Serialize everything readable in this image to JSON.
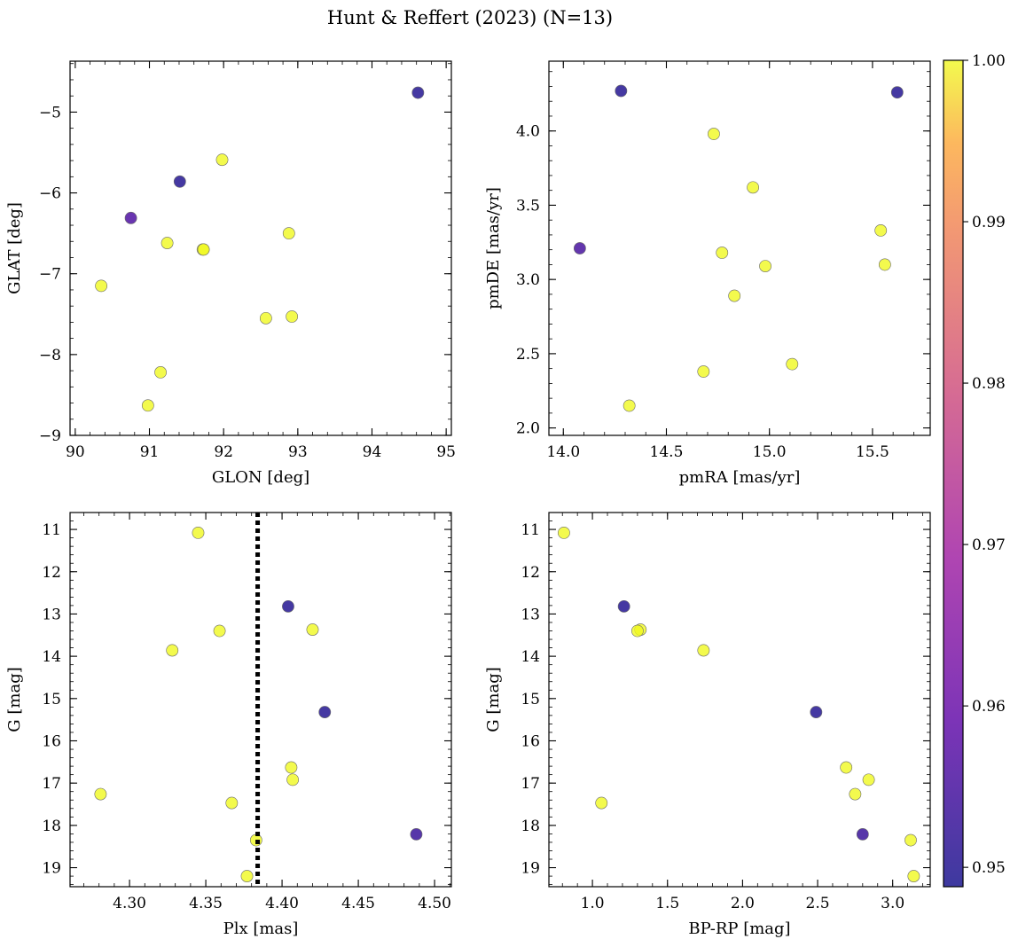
{
  "title": "Hunt & Reffert (2023) (N=13)",
  "colorbar": {
    "min": 0.9488,
    "max": 1.0,
    "ticks": [
      0.95,
      0.96,
      0.97,
      0.98,
      0.99,
      1.0
    ],
    "tick_labels": [
      "0.95",
      "0.96",
      "0.97",
      "0.98",
      "0.99",
      "1.00"
    ],
    "colormap": "plasma"
  },
  "chart_data": [
    {
      "type": "scatter",
      "xlabel": "GLON [deg]",
      "ylabel": "GLAT [deg]",
      "xlim": [
        89.93,
        95.07
      ],
      "ylim": [
        -9.0,
        -4.37
      ],
      "xticks": [
        90,
        91,
        92,
        93,
        94,
        95
      ],
      "xtick_labels": [
        "90",
        "91",
        "92",
        "93",
        "94",
        "95"
      ],
      "yticks": [
        -9,
        -8,
        -7,
        -6,
        -5
      ],
      "ytick_labels": [
        "−9",
        "−8",
        "−7",
        "−6",
        "−5"
      ],
      "x_minor": 0.2,
      "y_minor": 0.2,
      "points": [
        {
          "x": 94.62,
          "y": -4.76,
          "c": 0.95
        },
        {
          "x": 91.41,
          "y": -5.86,
          "c": 0.95
        },
        {
          "x": 90.75,
          "y": -6.31,
          "c": 0.956
        },
        {
          "x": 91.98,
          "y": -5.59,
          "c": 1.0
        },
        {
          "x": 91.24,
          "y": -6.62,
          "c": 1.0
        },
        {
          "x": 91.72,
          "y": -6.7,
          "c": 1.0
        },
        {
          "x": 91.73,
          "y": -6.7,
          "c": 1.0
        },
        {
          "x": 92.88,
          "y": -6.5,
          "c": 1.0
        },
        {
          "x": 90.35,
          "y": -7.15,
          "c": 1.0
        },
        {
          "x": 92.57,
          "y": -7.55,
          "c": 1.0
        },
        {
          "x": 92.92,
          "y": -7.53,
          "c": 1.0
        },
        {
          "x": 91.15,
          "y": -8.22,
          "c": 1.0
        },
        {
          "x": 90.98,
          "y": -8.63,
          "c": 1.0
        }
      ]
    },
    {
      "type": "scatter",
      "xlabel": "pmRA [mas/yr]",
      "ylabel": "pmDE [mas/yr]",
      "xlim": [
        13.93,
        15.78
      ],
      "ylim": [
        1.95,
        4.47
      ],
      "xticks": [
        14.0,
        14.5,
        15.0,
        15.5
      ],
      "xtick_labels": [
        "14.0",
        "14.5",
        "15.0",
        "15.5"
      ],
      "yticks": [
        2.0,
        2.5,
        3.0,
        3.5,
        4.0
      ],
      "ytick_labels": [
        "2.0",
        "2.5",
        "3.0",
        "3.5",
        "4.0"
      ],
      "x_minor": 0.1,
      "y_minor": 0.1,
      "points": [
        {
          "x": 14.28,
          "y": 4.27,
          "c": 0.95
        },
        {
          "x": 15.62,
          "y": 4.26,
          "c": 0.95
        },
        {
          "x": 14.08,
          "y": 3.21,
          "c": 0.955
        },
        {
          "x": 14.73,
          "y": 3.98,
          "c": 1.0
        },
        {
          "x": 14.92,
          "y": 3.62,
          "c": 1.0
        },
        {
          "x": 15.54,
          "y": 3.33,
          "c": 1.0
        },
        {
          "x": 14.77,
          "y": 3.18,
          "c": 1.0
        },
        {
          "x": 14.98,
          "y": 3.09,
          "c": 1.0
        },
        {
          "x": 15.56,
          "y": 3.1,
          "c": 1.0
        },
        {
          "x": 14.83,
          "y": 2.89,
          "c": 1.0
        },
        {
          "x": 15.11,
          "y": 2.43,
          "c": 1.0
        },
        {
          "x": 14.68,
          "y": 2.38,
          "c": 1.0
        },
        {
          "x": 14.32,
          "y": 2.15,
          "c": 1.0
        }
      ]
    },
    {
      "type": "scatter",
      "xlabel": "Plx [mas]",
      "ylabel": "G [mag]",
      "xlim": [
        4.261,
        4.511
      ],
      "ylim": [
        19.45,
        10.6
      ],
      "xticks": [
        4.3,
        4.35,
        4.4,
        4.45,
        4.5
      ],
      "xtick_labels": [
        "4.30",
        "4.35",
        "4.40",
        "4.45",
        "4.50"
      ],
      "yticks": [
        11,
        12,
        13,
        14,
        15,
        16,
        17,
        18,
        19
      ],
      "ytick_labels": [
        "11",
        "12",
        "13",
        "14",
        "15",
        "16",
        "17",
        "18",
        "19"
      ],
      "x_minor": 0.01,
      "y_minor": 0.2,
      "vline": 4.384,
      "points": [
        {
          "x": 4.345,
          "y": 11.08,
          "c": 1.0
        },
        {
          "x": 4.404,
          "y": 12.82,
          "c": 0.95
        },
        {
          "x": 4.359,
          "y": 13.4,
          "c": 1.0
        },
        {
          "x": 4.42,
          "y": 13.37,
          "c": 1.0
        },
        {
          "x": 4.328,
          "y": 13.86,
          "c": 1.0
        },
        {
          "x": 4.428,
          "y": 15.32,
          "c": 0.95
        },
        {
          "x": 4.406,
          "y": 16.63,
          "c": 1.0
        },
        {
          "x": 4.407,
          "y": 16.92,
          "c": 1.0
        },
        {
          "x": 4.281,
          "y": 17.26,
          "c": 1.0
        },
        {
          "x": 4.367,
          "y": 17.47,
          "c": 1.0
        },
        {
          "x": 4.488,
          "y": 18.21,
          "c": 0.953
        },
        {
          "x": 4.383,
          "y": 18.35,
          "c": 1.0
        },
        {
          "x": 4.377,
          "y": 19.2,
          "c": 1.0
        }
      ]
    },
    {
      "type": "scatter",
      "xlabel": "BP-RP [mag]",
      "ylabel": "G [mag]",
      "xlim": [
        0.71,
        3.25
      ],
      "ylim": [
        19.45,
        10.6
      ],
      "xticks": [
        1.0,
        1.5,
        2.0,
        2.5,
        3.0
      ],
      "xtick_labels": [
        "1.0",
        "1.5",
        "2.0",
        "2.5",
        "3.0"
      ],
      "yticks": [
        11,
        12,
        13,
        14,
        15,
        16,
        17,
        18,
        19
      ],
      "ytick_labels": [
        "11",
        "12",
        "13",
        "14",
        "15",
        "16",
        "17",
        "18",
        "19"
      ],
      "x_minor": 0.1,
      "y_minor": 0.2,
      "points": [
        {
          "x": 0.81,
          "y": 11.08,
          "c": 1.0
        },
        {
          "x": 1.21,
          "y": 12.82,
          "c": 0.95
        },
        {
          "x": 1.32,
          "y": 13.37,
          "c": 1.0
        },
        {
          "x": 1.3,
          "y": 13.4,
          "c": 1.0
        },
        {
          "x": 1.74,
          "y": 13.86,
          "c": 1.0
        },
        {
          "x": 2.49,
          "y": 15.32,
          "c": 0.95
        },
        {
          "x": 2.69,
          "y": 16.63,
          "c": 1.0
        },
        {
          "x": 2.84,
          "y": 16.92,
          "c": 1.0
        },
        {
          "x": 2.75,
          "y": 17.26,
          "c": 1.0
        },
        {
          "x": 1.06,
          "y": 17.47,
          "c": 1.0
        },
        {
          "x": 2.8,
          "y": 18.21,
          "c": 0.953
        },
        {
          "x": 3.12,
          "y": 18.35,
          "c": 1.0
        },
        {
          "x": 3.14,
          "y": 19.2,
          "c": 1.0
        }
      ]
    }
  ]
}
